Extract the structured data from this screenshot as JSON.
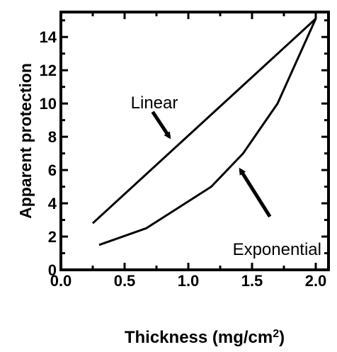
{
  "chart_data": {
    "type": "line",
    "title": "",
    "xlabel": "Thickness (mg/cm",
    "xlabel_sup": "2",
    "xlabel_suffix": ")",
    "ylabel": "Apparent protection",
    "xlim": [
      0.0,
      2.1
    ],
    "ylim": [
      0,
      15.5
    ],
    "x_ticks": [
      "0.0",
      "0.5",
      "1.0",
      "1.5",
      "2.0"
    ],
    "y_ticks": [
      "0",
      "2",
      "4",
      "6",
      "8",
      "10",
      "12",
      "14"
    ],
    "grid": false,
    "series": [
      {
        "name": "Linear",
        "x": [
          0.25,
          2.0
        ],
        "y": [
          2.8,
          15.1
        ]
      },
      {
        "name": "Exponential",
        "x": [
          0.3,
          0.67,
          1.18,
          1.43,
          1.7,
          2.0
        ],
        "y": [
          1.5,
          2.5,
          5.0,
          7.0,
          10.0,
          15.1
        ]
      }
    ],
    "annotations": [
      {
        "text": "Linear",
        "arrow_from": [
          0.72,
          9.5
        ],
        "arrow_to": [
          0.85,
          8.0
        ]
      },
      {
        "text": "Exponential",
        "arrow_from": [
          1.64,
          3.2
        ],
        "arrow_to": [
          1.41,
          6.0
        ]
      }
    ]
  }
}
